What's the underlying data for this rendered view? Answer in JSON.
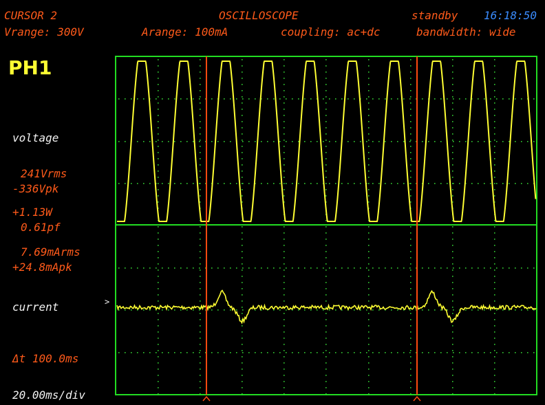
{
  "header": {
    "mode": "CURSOR 2",
    "title": "OSCILLOSCOPE",
    "state": "standby",
    "time": "16:18:50",
    "vrange": "Vrange: 300V",
    "arange": "Arange: 100mA",
    "coupling": "coupling: ac+dc",
    "bandwidth": "bandwidth: wide"
  },
  "channel": {
    "name": "PH1"
  },
  "readings": {
    "voltage_label": "voltage",
    "vrms": "241Vrms",
    "vpk": "-336Vpk",
    "power": "+1.13W",
    "pf": "0.61pf",
    "arms": "7.69mArms",
    "apk": "+24.8mApk",
    "current_label": "current",
    "current_marker": ">",
    "delta_t": "Δt 100.0ms",
    "timebase": "20.00ms/div"
  },
  "colors": {
    "grid_border": "#22dd22",
    "grid_dots": "#33cc33",
    "trace": "#ffff33",
    "cursor": "#ff4a10"
  }
}
